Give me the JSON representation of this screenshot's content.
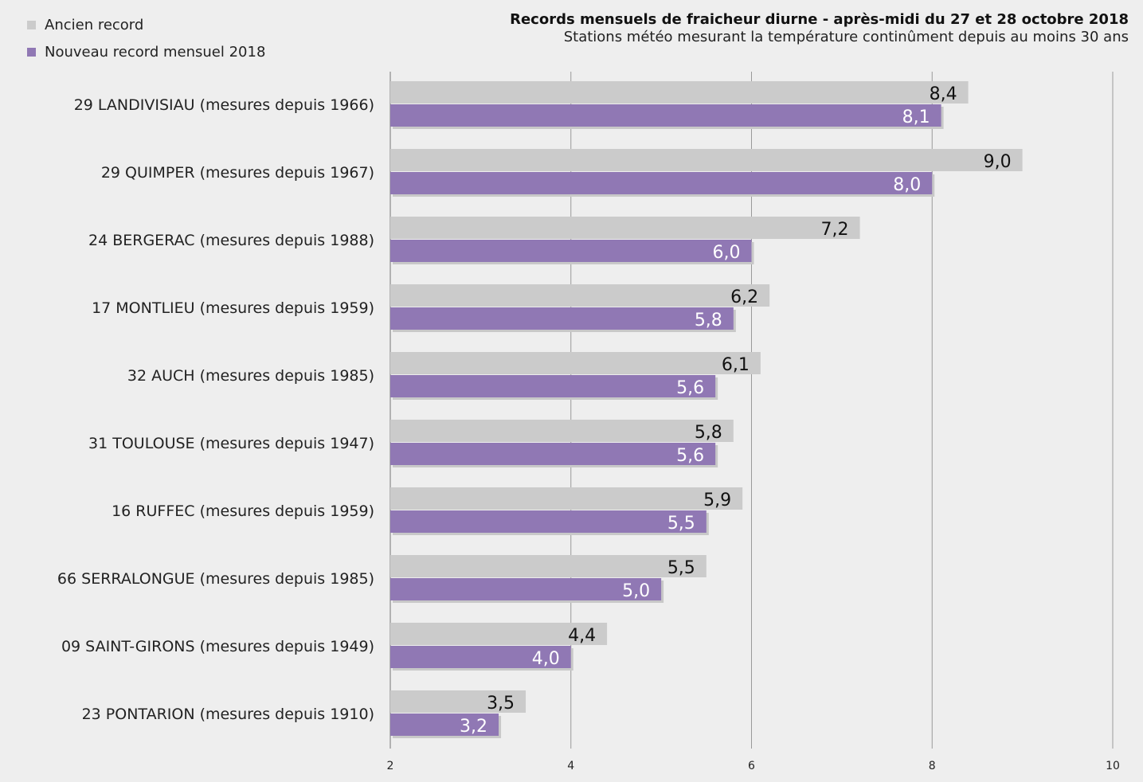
{
  "chart_data": {
    "type": "bar",
    "orientation": "horizontal",
    "title": "Records mensuels de fraicheur diurne - après-midi du 27 et 28 octobre 2018",
    "subtitle": "Stations météo mesurant la température continûment depuis au moins 30 ans",
    "categories": [
      "29 LANDIVISIAU (mesures depuis 1966)",
      "29 QUIMPER (mesures depuis 1967)",
      "24 BERGERAC (mesures depuis 1988)",
      "17 MONTLIEU (mesures depuis 1959)",
      "32 AUCH (mesures depuis 1985)",
      "31 TOULOUSE (mesures depuis 1947)",
      "16 RUFFEC (mesures depuis 1959)",
      "66 SERRALONGUE (mesures depuis 1985)",
      "09 SAINT-GIRONS (mesures depuis 1949)",
      "23 PONTARION (mesures depuis 1910)"
    ],
    "series": [
      {
        "name": "Ancien record",
        "color": "#cbcbcb",
        "values": [
          8.4,
          9.0,
          7.2,
          6.2,
          6.1,
          5.8,
          5.9,
          5.5,
          4.4,
          3.5
        ],
        "labels": [
          "8,4",
          "9,0",
          "7,2",
          "6,2",
          "6,1",
          "5,8",
          "5,9",
          "5,5",
          "4,4",
          "3,5"
        ]
      },
      {
        "name": "Nouveau record mensuel 2018",
        "color": "#9078b4",
        "values": [
          8.1,
          8.0,
          6.0,
          5.8,
          5.6,
          5.6,
          5.5,
          5.0,
          4.0,
          3.2
        ],
        "labels": [
          "8,1",
          "8,0",
          "6,0",
          "5,8",
          "5,6",
          "5,6",
          "5,5",
          "5,0",
          "4,0",
          "3,2"
        ]
      }
    ],
    "xlim": [
      2,
      10
    ],
    "xticks": [
      2,
      4,
      6,
      8,
      10
    ],
    "xtick_labels": [
      "2",
      "4",
      "6",
      "8",
      "10"
    ],
    "grid": true,
    "legend_position": "top-left"
  }
}
